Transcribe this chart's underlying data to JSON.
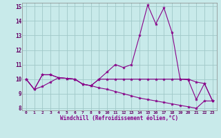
{
  "xlabel": "Windchill (Refroidissement éolien,°C)",
  "xlim": [
    -0.5,
    23.5
  ],
  "ylim": [
    7.85,
    15.25
  ],
  "yticks": [
    8,
    9,
    10,
    11,
    12,
    13,
    14,
    15
  ],
  "xticks": [
    0,
    1,
    2,
    3,
    4,
    5,
    6,
    7,
    8,
    9,
    10,
    11,
    12,
    13,
    14,
    15,
    16,
    17,
    18,
    19,
    20,
    21,
    22,
    23
  ],
  "bg_color": "#c8eaea",
  "grid_color": "#a0c8c8",
  "line_color": "#880088",
  "lines": [
    [
      10.0,
      9.3,
      10.3,
      10.3,
      10.1,
      10.05,
      10.0,
      9.65,
      9.55,
      10.0,
      10.5,
      11.0,
      10.8,
      11.0,
      13.0,
      15.1,
      13.8,
      14.9,
      13.2,
      10.0,
      10.0,
      9.8,
      9.7,
      8.5
    ],
    [
      10.0,
      9.3,
      10.3,
      10.3,
      10.1,
      10.05,
      10.0,
      9.65,
      9.55,
      10.0,
      10.0,
      10.0,
      10.0,
      10.0,
      10.0,
      10.0,
      10.0,
      10.0,
      10.0,
      10.0,
      9.95,
      8.6,
      9.7,
      8.5
    ],
    [
      10.0,
      9.3,
      9.5,
      9.8,
      10.1,
      10.05,
      10.0,
      9.65,
      9.55,
      9.4,
      9.3,
      9.15,
      9.0,
      8.85,
      8.7,
      8.6,
      8.5,
      8.4,
      8.3,
      8.2,
      8.1,
      8.0,
      8.5,
      8.5
    ]
  ]
}
